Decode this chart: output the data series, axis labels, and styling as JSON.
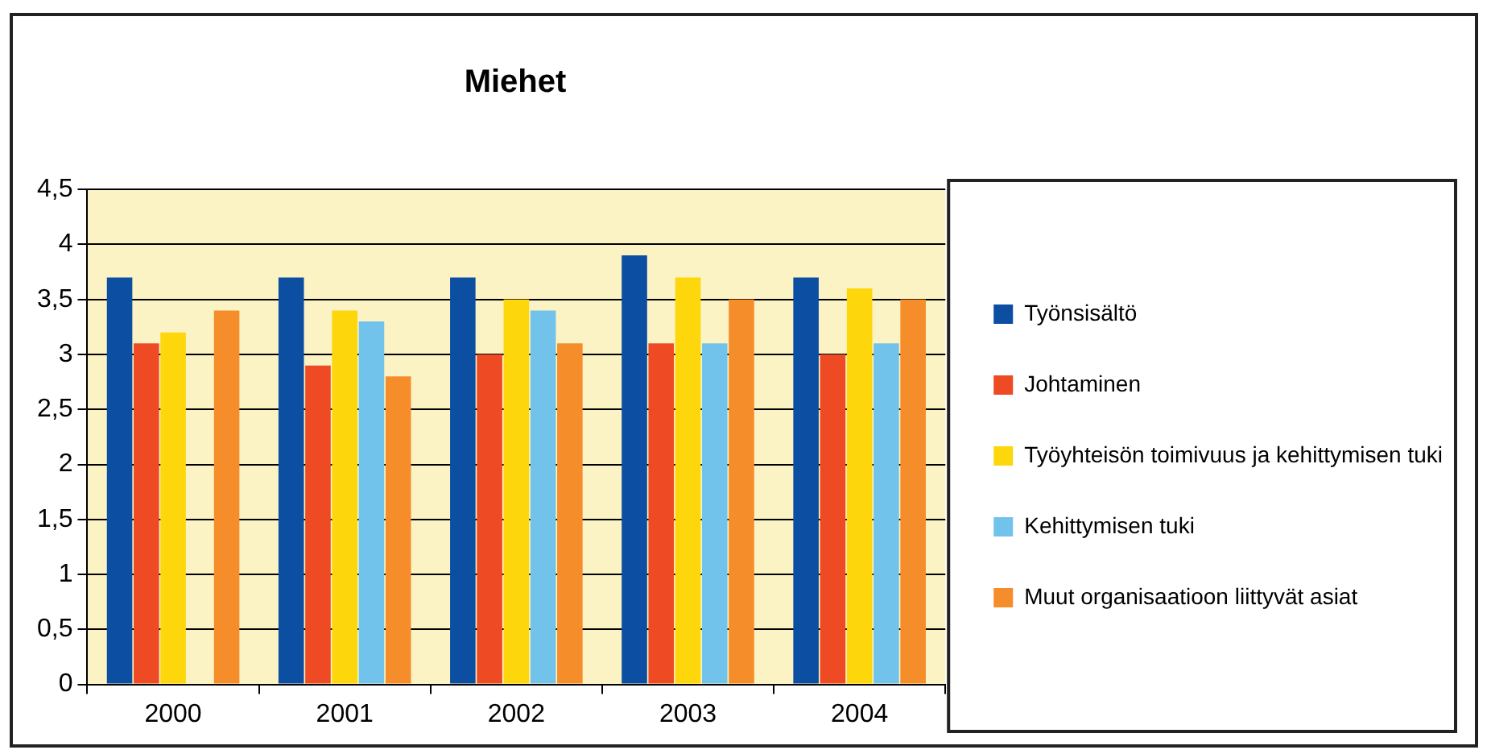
{
  "chart_data": {
    "type": "bar",
    "title": "Miehet",
    "categories": [
      "2000",
      "2001",
      "2002",
      "2003",
      "2004"
    ],
    "series": [
      {
        "name": "Työnsisältö",
        "color": "#0b4ea2",
        "values": [
          3.7,
          3.7,
          3.7,
          3.9,
          3.7
        ]
      },
      {
        "name": "Johtaminen",
        "color": "#ee4b24",
        "values": [
          3.1,
          2.9,
          3.0,
          3.1,
          3.0
        ]
      },
      {
        "name": "Työyhteisön toimivuus ja kehittymisen tuki",
        "color": "#fdd60b",
        "values": [
          3.2,
          3.4,
          3.5,
          3.7,
          3.6
        ]
      },
      {
        "name": "Kehittymisen tuki",
        "color": "#72c3ec",
        "values": [
          null,
          3.3,
          3.4,
          3.1,
          3.1
        ]
      },
      {
        "name": "Muut organisaatioon liittyvät asiat",
        "color": "#f58d2a",
        "values": [
          3.4,
          2.8,
          3.1,
          3.5,
          3.5
        ]
      }
    ],
    "ylim": [
      0,
      4.5
    ],
    "yticks": [
      0,
      {
        "value": 0.5,
        "label": "0,5"
      },
      1,
      {
        "value": 1.5,
        "label": "1,5"
      },
      2,
      {
        "value": 2.5,
        "label": "2,5"
      },
      3,
      {
        "value": 3.5,
        "label": "3,5"
      },
      4,
      {
        "value": 4.5,
        "label": "4,5"
      }
    ],
    "grid": "y",
    "legend": "right"
  }
}
